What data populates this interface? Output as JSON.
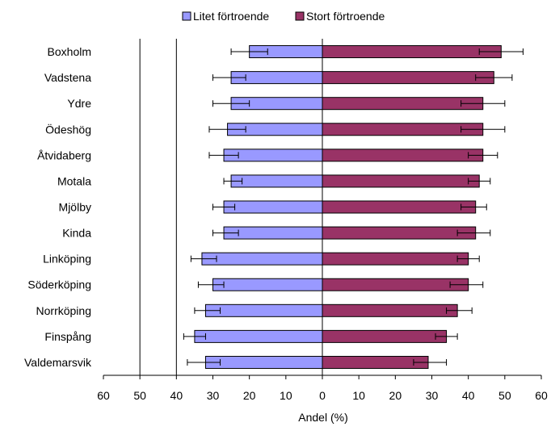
{
  "chart_data": {
    "type": "bar",
    "orientation": "horizontal-diverging",
    "title": "",
    "xlabel": "Andel (%)",
    "ylabel": "",
    "xlim": [
      -60,
      60
    ],
    "x_tick_values": [
      -60,
      -50,
      -40,
      -30,
      -20,
      -10,
      0,
      10,
      20,
      30,
      40,
      50,
      60
    ],
    "x_tick_labels": [
      "60",
      "50",
      "40",
      "30",
      "20",
      "10",
      "0",
      "10",
      "20",
      "30",
      "40",
      "50",
      "60"
    ],
    "grid": "vertical lines at 50 and 40 on the left side",
    "legend_position": "top-center",
    "categories": [
      "Boxholm",
      "Vadstena",
      "Ydre",
      "Ödeshög",
      "Åtvidaberg",
      "Motala",
      "Mjölby",
      "Kinda",
      "Linköping",
      "Söderköping",
      "Norrköping",
      "Finspång",
      "Valdemarsvik"
    ],
    "series": [
      {
        "name": "Litet förtroende",
        "color": "#9999ff",
        "side": "left",
        "values": [
          20,
          25,
          25,
          26,
          27,
          25,
          27,
          27,
          33,
          30,
          32,
          35,
          32
        ],
        "error_low": [
          25,
          30,
          30,
          31,
          31,
          27,
          30,
          30,
          36,
          34,
          35,
          38,
          37
        ],
        "error_high": [
          15,
          21,
          20,
          21,
          23,
          22,
          24,
          23,
          29,
          27,
          28,
          32,
          28
        ]
      },
      {
        "name": "Stort förtroende",
        "color": "#993366",
        "side": "right",
        "values": [
          49,
          47,
          44,
          44,
          44,
          43,
          42,
          42,
          40,
          40,
          37,
          34,
          29
        ],
        "error_low": [
          43,
          42,
          38,
          38,
          40,
          40,
          38,
          37,
          37,
          35,
          34,
          31,
          25
        ],
        "error_high": [
          55,
          52,
          50,
          50,
          48,
          46,
          45,
          46,
          43,
          44,
          41,
          37,
          34
        ]
      }
    ]
  }
}
